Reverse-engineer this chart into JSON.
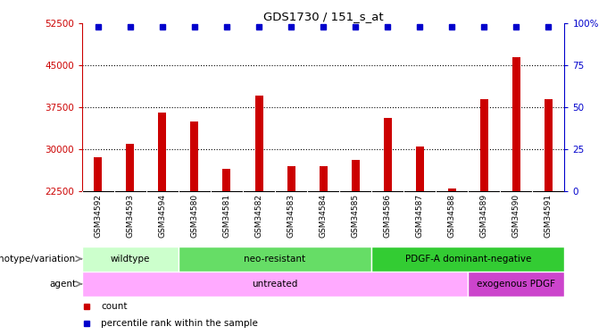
{
  "title": "GDS1730 / 151_s_at",
  "samples": [
    "GSM34592",
    "GSM34593",
    "GSM34594",
    "GSM34580",
    "GSM34581",
    "GSM34582",
    "GSM34583",
    "GSM34584",
    "GSM34585",
    "GSM34586",
    "GSM34587",
    "GSM34588",
    "GSM34589",
    "GSM34590",
    "GSM34591"
  ],
  "counts": [
    28500,
    31000,
    36500,
    35000,
    26500,
    39500,
    27000,
    27000,
    28000,
    35500,
    30500,
    23000,
    39000,
    46500,
    39000
  ],
  "ylim_left": [
    22500,
    52500
  ],
  "ylim_right": [
    0,
    100
  ],
  "yticks_left": [
    22500,
    30000,
    37500,
    45000,
    52500
  ],
  "yticks_right": [
    0,
    25,
    50,
    75,
    100
  ],
  "bar_color": "#cc0000",
  "percentile_color": "#0000cc",
  "bg_color": "#ffffff",
  "plot_bg": "#ffffff",
  "xtick_bg": "#cccccc",
  "genotype_groups": [
    {
      "label": "wildtype",
      "start": 0,
      "end": 3,
      "color": "#ccffcc"
    },
    {
      "label": "neo-resistant",
      "start": 3,
      "end": 9,
      "color": "#66dd66"
    },
    {
      "label": "PDGF-A dominant-negative",
      "start": 9,
      "end": 15,
      "color": "#33cc33"
    }
  ],
  "agent_groups": [
    {
      "label": "untreated",
      "start": 0,
      "end": 12,
      "color": "#ffaaff"
    },
    {
      "label": "exogenous PDGF",
      "start": 12,
      "end": 15,
      "color": "#cc44cc"
    }
  ],
  "left_axis_color": "#cc0000",
  "right_axis_color": "#0000cc",
  "legend_items": [
    {
      "label": "count",
      "color": "#cc0000"
    },
    {
      "label": "percentile rank within the sample",
      "color": "#0000cc"
    }
  ]
}
